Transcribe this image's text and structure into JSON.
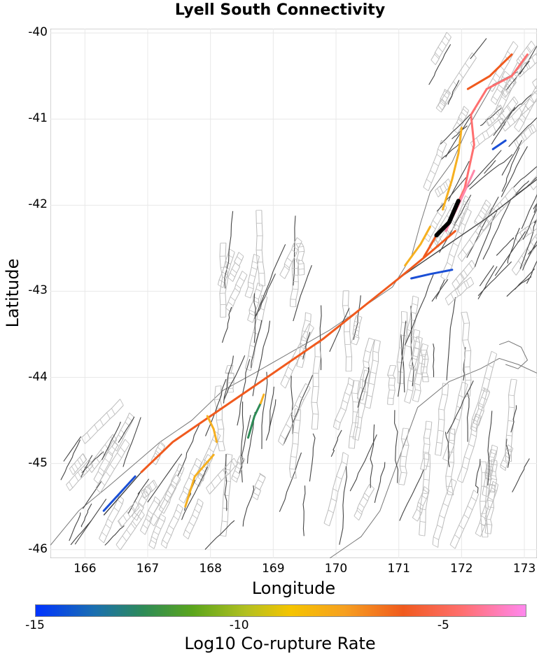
{
  "title": "Lyell South Connectivity",
  "axes": {
    "xlabel": "Longitude",
    "ylabel": "Latitude",
    "xticks": [
      "166",
      "167",
      "168",
      "169",
      "170",
      "171",
      "172",
      "173"
    ],
    "yticks": [
      "-40",
      "-41",
      "-42",
      "-43",
      "-44",
      "-45",
      "-46"
    ],
    "xlim": [
      165.45,
      173.2
    ],
    "ylim": [
      -46.1,
      -39.95
    ]
  },
  "colorbar": {
    "label": "Log10 Co-rupture Rate",
    "ticks": [
      "-15",
      "-10",
      "-5"
    ],
    "range": [
      -15,
      -3.0
    ],
    "colors": [
      "#0033ff",
      "#2e8b57",
      "#b3c020",
      "#f5c400",
      "#f05a1e",
      "#ff6f6f",
      "#ff88ee"
    ]
  },
  "colors": {
    "fault_dark": "#444444",
    "fault_light": "#bbbbbb",
    "coast": "#777777",
    "source_fault": "#000000"
  }
}
